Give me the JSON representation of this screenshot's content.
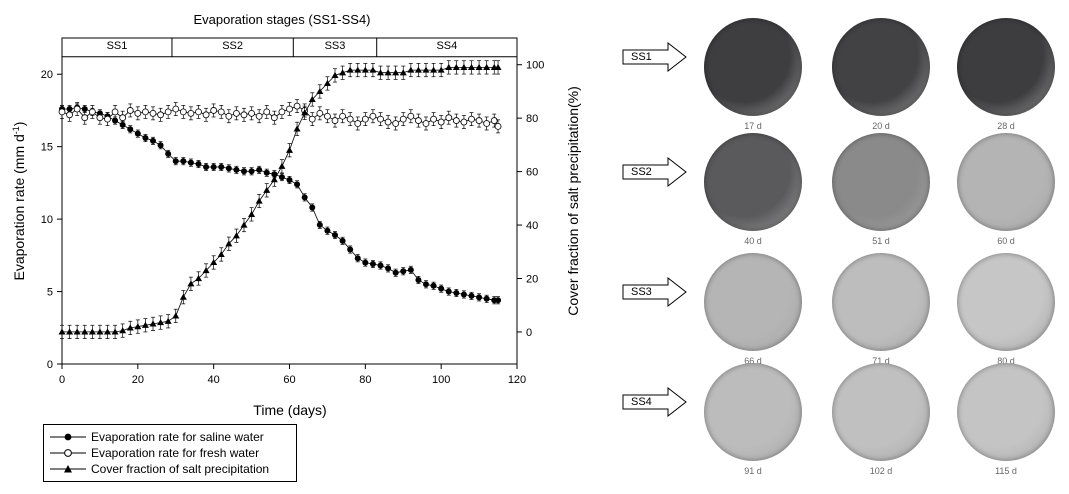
{
  "chart_data": {
    "type": "scatter",
    "title": "Evaporation stages (SS1-SS4)",
    "xlabel": "Time (days)",
    "ylabel_left": "Evaporation rate (mm d-1)",
    "ylabel_right": "Cover fraction of salt precipitation(%)",
    "xlim": [
      0,
      120
    ],
    "ylim_left": [
      0,
      22.5
    ],
    "ylim_right": [
      -12,
      110
    ],
    "x_ticks": [
      "0",
      "20",
      "40",
      "60",
      "80",
      "100",
      "120"
    ],
    "y_ticks_left": [
      "0",
      "5",
      "10",
      "15",
      "20"
    ],
    "y_ticks_right": [
      "0",
      "20",
      "40",
      "60",
      "80",
      "100"
    ],
    "grid": false,
    "legend_position": "below",
    "stages": [
      {
        "label": "SS1",
        "start": 0,
        "end": 29
      },
      {
        "label": "SS2",
        "start": 29,
        "end": 61
      },
      {
        "label": "SS3",
        "start": 61,
        "end": 83
      },
      {
        "label": "SS4",
        "start": 83,
        "end": 120
      }
    ],
    "series": [
      {
        "name": "Evaporation rate for saline water",
        "axis": "left",
        "marker": "filled-circle",
        "points": [
          [
            0,
            17.6
          ],
          [
            2,
            17.6
          ],
          [
            4,
            17.7
          ],
          [
            6,
            17.6
          ],
          [
            8,
            17.4
          ],
          [
            10,
            17.3
          ],
          [
            12,
            17.1
          ],
          [
            14,
            16.8
          ],
          [
            16,
            16.5
          ],
          [
            18,
            16.2
          ],
          [
            20,
            15.9
          ],
          [
            22,
            15.6
          ],
          [
            24,
            15.4
          ],
          [
            26,
            15.1
          ],
          [
            28,
            14.5
          ],
          [
            30,
            14.0
          ],
          [
            32,
            14.0
          ],
          [
            34,
            13.9
          ],
          [
            36,
            13.8
          ],
          [
            38,
            13.6
          ],
          [
            40,
            13.6
          ],
          [
            42,
            13.6
          ],
          [
            44,
            13.5
          ],
          [
            46,
            13.4
          ],
          [
            48,
            13.3
          ],
          [
            50,
            13.3
          ],
          [
            52,
            13.4
          ],
          [
            54,
            13.2
          ],
          [
            56,
            13.1
          ],
          [
            58,
            12.9
          ],
          [
            60,
            12.7
          ],
          [
            62,
            12.4
          ],
          [
            64,
            11.5
          ],
          [
            66,
            10.8
          ],
          [
            68,
            9.6
          ],
          [
            70,
            9.2
          ],
          [
            72,
            8.9
          ],
          [
            74,
            8.5
          ],
          [
            76,
            7.9
          ],
          [
            78,
            7.3
          ],
          [
            80,
            7.0
          ],
          [
            82,
            6.9
          ],
          [
            84,
            6.8
          ],
          [
            86,
            6.6
          ],
          [
            88,
            6.3
          ],
          [
            90,
            6.4
          ],
          [
            92,
            6.5
          ],
          [
            94,
            5.8
          ],
          [
            96,
            5.5
          ],
          [
            98,
            5.4
          ],
          [
            100,
            5.2
          ],
          [
            102,
            5.0
          ],
          [
            104,
            4.9
          ],
          [
            106,
            4.8
          ],
          [
            108,
            4.7
          ],
          [
            110,
            4.6
          ],
          [
            112,
            4.5
          ],
          [
            114,
            4.4
          ],
          [
            115,
            4.4
          ]
        ],
        "error": 0.25
      },
      {
        "name": "Evaporation rate for fresh water",
        "axis": "left",
        "marker": "open-circle",
        "points": [
          [
            0,
            17.4
          ],
          [
            2,
            17.2
          ],
          [
            4,
            17.6
          ],
          [
            6,
            17.0
          ],
          [
            8,
            17.4
          ],
          [
            10,
            17.0
          ],
          [
            12,
            16.9
          ],
          [
            14,
            17.4
          ],
          [
            16,
            17.0
          ],
          [
            18,
            17.5
          ],
          [
            20,
            17.3
          ],
          [
            22,
            17.4
          ],
          [
            24,
            17.3
          ],
          [
            26,
            17.2
          ],
          [
            28,
            17.4
          ],
          [
            30,
            17.6
          ],
          [
            32,
            17.4
          ],
          [
            34,
            17.3
          ],
          [
            36,
            17.4
          ],
          [
            38,
            17.2
          ],
          [
            40,
            17.5
          ],
          [
            42,
            17.4
          ],
          [
            44,
            17.1
          ],
          [
            46,
            17.3
          ],
          [
            48,
            17.2
          ],
          [
            50,
            17.3
          ],
          [
            52,
            17.1
          ],
          [
            54,
            17.4
          ],
          [
            56,
            17.0
          ],
          [
            58,
            17.4
          ],
          [
            60,
            17.6
          ],
          [
            62,
            17.8
          ],
          [
            64,
            17.5
          ],
          [
            66,
            16.9
          ],
          [
            68,
            17.3
          ],
          [
            70,
            17.1
          ],
          [
            72,
            16.8
          ],
          [
            74,
            17.1
          ],
          [
            76,
            16.9
          ],
          [
            78,
            16.6
          ],
          [
            80,
            16.9
          ],
          [
            82,
            17.1
          ],
          [
            84,
            16.9
          ],
          [
            86,
            16.7
          ],
          [
            88,
            16.6
          ],
          [
            90,
            16.9
          ],
          [
            92,
            17.1
          ],
          [
            94,
            16.8
          ],
          [
            96,
            16.6
          ],
          [
            98,
            16.9
          ],
          [
            100,
            16.7
          ],
          [
            102,
            17.0
          ],
          [
            104,
            16.8
          ],
          [
            106,
            16.7
          ],
          [
            108,
            16.9
          ],
          [
            110,
            16.8
          ],
          [
            112,
            16.6
          ],
          [
            114,
            16.8
          ],
          [
            115,
            16.4
          ]
        ],
        "error": 0.45
      },
      {
        "name": "Cover fraction of salt precipitation",
        "axis": "right",
        "marker": "filled-triangle",
        "points": [
          [
            0,
            0
          ],
          [
            2,
            0
          ],
          [
            4,
            0
          ],
          [
            6,
            0
          ],
          [
            8,
            0
          ],
          [
            10,
            0
          ],
          [
            12,
            0
          ],
          [
            14,
            0
          ],
          [
            16,
            0.5
          ],
          [
            18,
            1.5
          ],
          [
            20,
            2
          ],
          [
            22,
            2.5
          ],
          [
            24,
            3
          ],
          [
            26,
            3.5
          ],
          [
            28,
            4
          ],
          [
            30,
            6
          ],
          [
            32,
            13
          ],
          [
            34,
            18
          ],
          [
            36,
            20
          ],
          [
            38,
            23
          ],
          [
            40,
            26
          ],
          [
            42,
            29
          ],
          [
            44,
            33
          ],
          [
            46,
            36
          ],
          [
            48,
            40
          ],
          [
            50,
            44
          ],
          [
            52,
            49
          ],
          [
            54,
            53
          ],
          [
            56,
            57
          ],
          [
            58,
            62
          ],
          [
            60,
            68
          ],
          [
            62,
            76
          ],
          [
            64,
            82
          ],
          [
            66,
            87
          ],
          [
            68,
            90
          ],
          [
            70,
            93
          ],
          [
            72,
            96
          ],
          [
            74,
            97
          ],
          [
            76,
            98
          ],
          [
            78,
            98
          ],
          [
            80,
            98
          ],
          [
            82,
            98
          ],
          [
            84,
            97
          ],
          [
            86,
            97
          ],
          [
            88,
            97
          ],
          [
            90,
            97
          ],
          [
            92,
            98
          ],
          [
            94,
            98
          ],
          [
            96,
            98
          ],
          [
            98,
            98
          ],
          [
            100,
            98
          ],
          [
            102,
            99
          ],
          [
            104,
            99
          ],
          [
            106,
            99
          ],
          [
            108,
            99
          ],
          [
            110,
            99
          ],
          [
            112,
            99
          ],
          [
            114,
            99
          ],
          [
            115,
            99
          ]
        ],
        "error": 2.5
      }
    ]
  },
  "panel": {
    "colors": {
      "photo_dark": "#3d3d3f",
      "photo_light": "#cdcdcd",
      "day_label": "#666666"
    },
    "rows": [
      {
        "stage": "SS1",
        "days": [
          "17 d",
          "20 d",
          "28 d"
        ],
        "tones": [
          "#3e3e40",
          "#424244",
          "#3d3d3f"
        ]
      },
      {
        "stage": "SS2",
        "days": [
          "40 d",
          "51 d",
          "60 d"
        ],
        "tones": [
          "#5a5a5c",
          "#8a8a8b",
          "#b4b4b4"
        ]
      },
      {
        "stage": "SS3",
        "days": [
          "66 d",
          "71 d",
          "80 d"
        ],
        "tones": [
          "#b5b5b5",
          "#bdbdbd",
          "#c6c6c6"
        ]
      },
      {
        "stage": "SS4",
        "days": [
          "91 d",
          "102 d",
          "115 d"
        ],
        "tones": [
          "#bcbcbc",
          "#c0c0c0",
          "#c4c4c4"
        ]
      }
    ]
  }
}
